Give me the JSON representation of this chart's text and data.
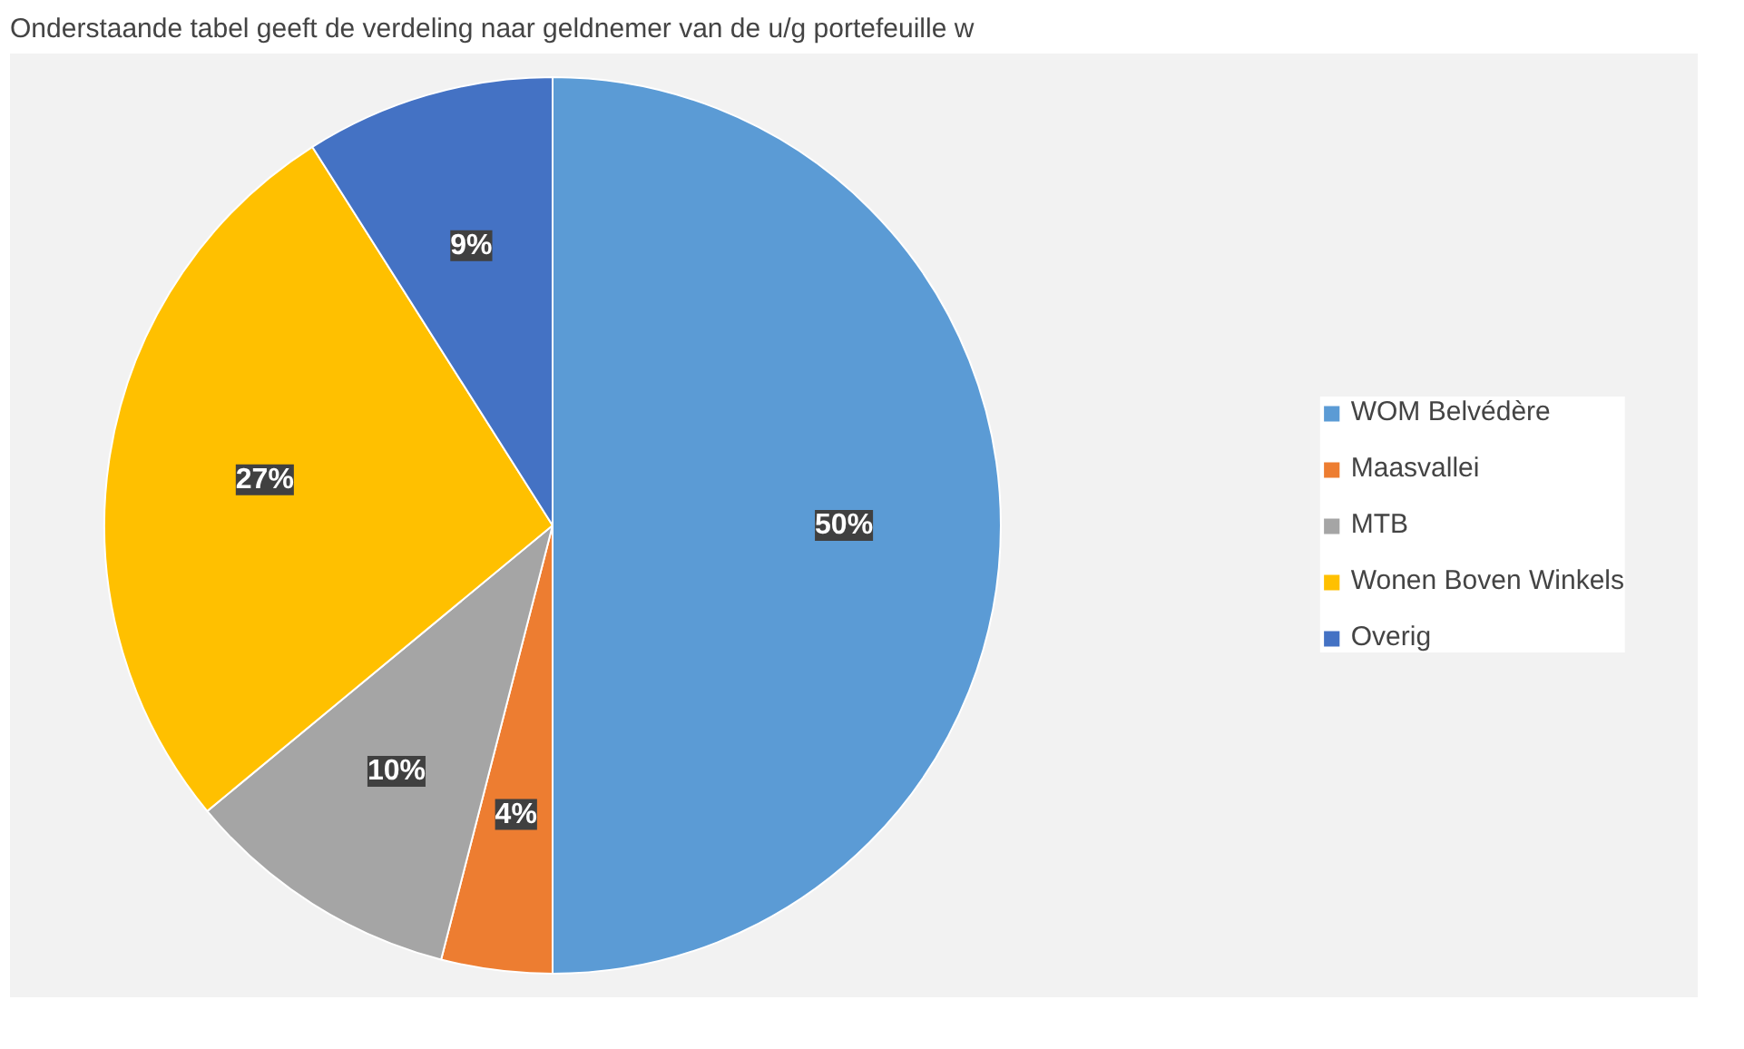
{
  "chart_data": {
    "type": "pie",
    "title": "Onderstaande tabel geeft de verdeling naar geldnemer van de u/g portefeuille w",
    "categories": [
      "WOM Belvédère",
      "Maasvallei",
      "MTB",
      "Wonen Boven Winkels",
      "Overig"
    ],
    "values": [
      50,
      4,
      10,
      27,
      9
    ],
    "colors": [
      "#5b9bd5",
      "#ed7d31",
      "#a5a5a5",
      "#ffc000",
      "#4472c4"
    ],
    "value_labels": [
      "50%",
      "4%",
      "10%",
      "27%",
      "9%"
    ],
    "legend": "right"
  }
}
